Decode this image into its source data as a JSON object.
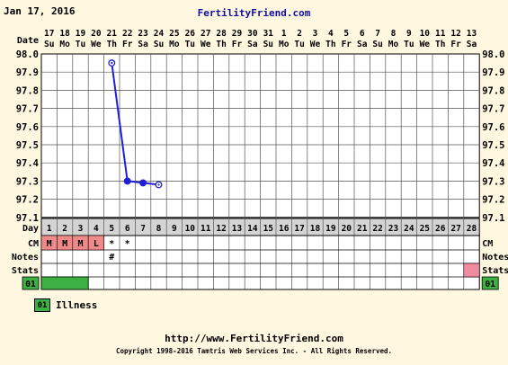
{
  "header": {
    "date": "Jan 17, 2016",
    "site": "FertilityFriend.com"
  },
  "chart_data": {
    "type": "line",
    "calendar_dates": [
      "17",
      "18",
      "19",
      "20",
      "21",
      "22",
      "23",
      "24",
      "25",
      "26",
      "27",
      "28",
      "29",
      "30",
      "31",
      "1",
      "2",
      "3",
      "4",
      "5",
      "6",
      "7",
      "8",
      "9",
      "10",
      "11",
      "12",
      "13"
    ],
    "weekdays": [
      "Su",
      "Mo",
      "Tu",
      "We",
      "Th",
      "Fr",
      "Sa",
      "Su",
      "Mo",
      "Tu",
      "We",
      "Th",
      "Fr",
      "Sa",
      "Su",
      "Mo",
      "Tu",
      "We",
      "Th",
      "Fr",
      "Sa",
      "Su",
      "Mo",
      "Tu",
      "We",
      "Th",
      "Fr",
      "Sa"
    ],
    "cycle_days": [
      "1",
      "2",
      "3",
      "4",
      "5",
      "6",
      "7",
      "8",
      "9",
      "10",
      "11",
      "12",
      "13",
      "14",
      "15",
      "16",
      "17",
      "18",
      "19",
      "20",
      "21",
      "22",
      "23",
      "24",
      "25",
      "26",
      "27",
      "28"
    ],
    "y_ticks": [
      "98.0",
      "97.9",
      "97.8",
      "97.7",
      "97.6",
      "97.5",
      "97.4",
      "97.3",
      "97.2",
      "97.1"
    ],
    "ylim": [
      97.1,
      98.0
    ],
    "temperatures": [
      {
        "day": 5,
        "temp": 97.95,
        "style": "open"
      },
      {
        "day": 6,
        "temp": 97.3,
        "style": "filled"
      },
      {
        "day": 7,
        "temp": 97.29,
        "style": "filled"
      },
      {
        "day": 8,
        "temp": 97.28,
        "style": "open"
      }
    ],
    "line_color": "#1f1fd6",
    "row_labels": {
      "date": "Date",
      "day": "Day",
      "cm": "CM",
      "notes": "Notes",
      "stats": "Stats"
    },
    "cm": [
      {
        "day": 1,
        "text": "M",
        "color": "#f08a8a"
      },
      {
        "day": 2,
        "text": "M",
        "color": "#f08a8a"
      },
      {
        "day": 3,
        "text": "M",
        "color": "#f08a8a"
      },
      {
        "day": 4,
        "text": "L",
        "color": "#f08a8a"
      },
      {
        "day": 5,
        "text": "*"
      },
      {
        "day": 6,
        "text": "*"
      }
    ],
    "notes": [
      {
        "day": 5,
        "text": "#"
      }
    ],
    "stats_marks": [
      {
        "day": 28,
        "color": "#f08aa0"
      }
    ],
    "bottom_bar": {
      "label": "01",
      "days": [
        1,
        2,
        3
      ],
      "color": "#3cb043"
    }
  },
  "legend": [
    {
      "code": "01",
      "label": "Illness",
      "color": "#3cb043"
    }
  ],
  "footer": {
    "url": "http://www.FertilityFriend.com",
    "copyright": "Copyright 1998-2016 Tamtris Web Services Inc. - All Rights Reserved."
  }
}
